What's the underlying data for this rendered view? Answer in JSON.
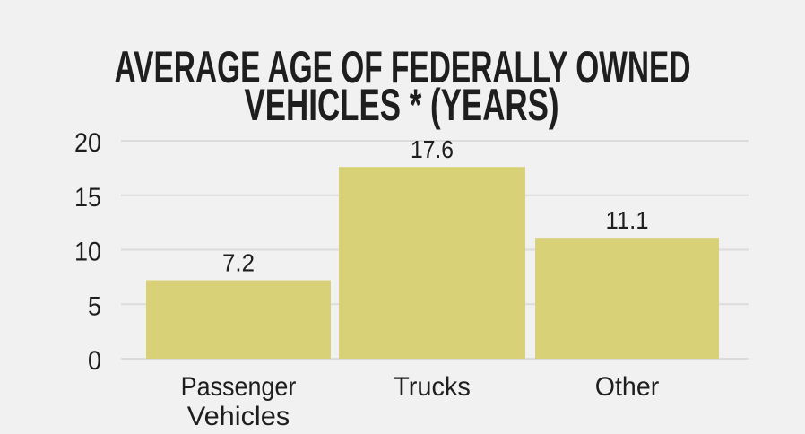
{
  "chart_data": {
    "type": "bar",
    "title": [
      "AVERAGE AGE OF FEDERALLY OWNED",
      "VEHICLES * (YEARS)"
    ],
    "categories": [
      [
        "Passenger",
        "Vehicles"
      ],
      [
        "Trucks"
      ],
      [
        "Other"
      ]
    ],
    "values": [
      7.2,
      17.6,
      11.1
    ],
    "value_labels": [
      "7.2",
      "17.6",
      "11.1"
    ],
    "yticks": [
      0,
      5,
      10,
      15,
      20
    ],
    "ylim": [
      0,
      20
    ],
    "xlabel": "",
    "ylabel": "",
    "grid": true,
    "colors": {
      "bar": "#d9d178",
      "grid": "#dcdcdc",
      "background": "#f1f1f1",
      "text": "#1e1e1e"
    }
  }
}
